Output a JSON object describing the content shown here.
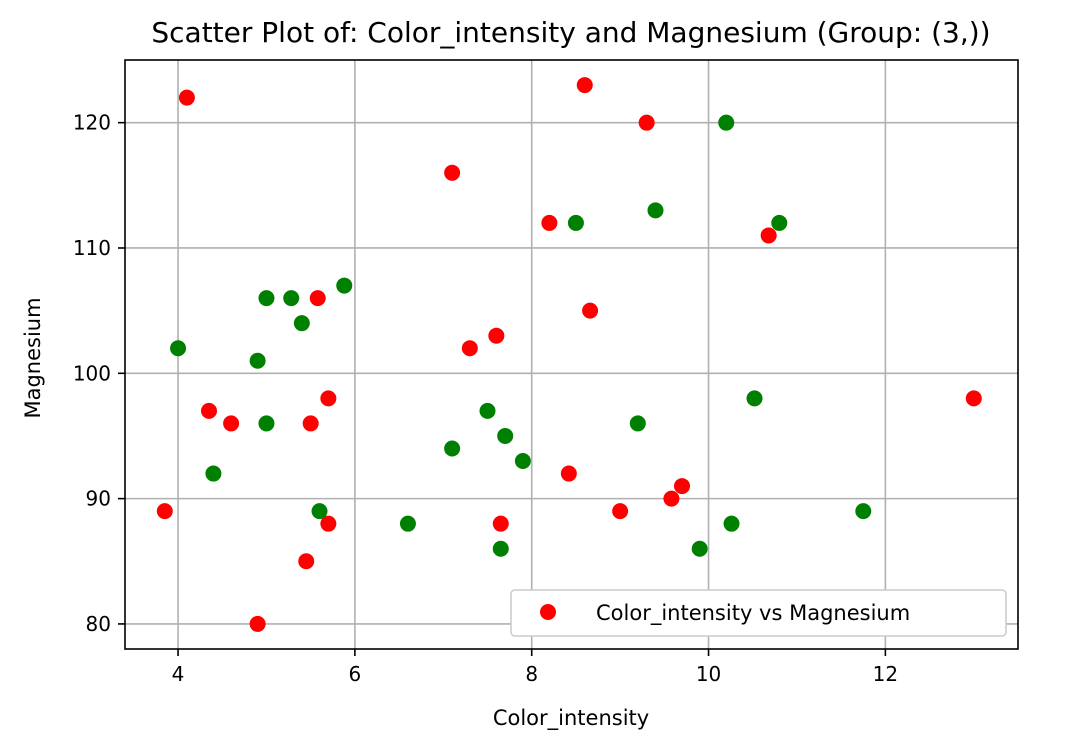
{
  "chart_data": {
    "type": "scatter",
    "title": "Scatter Plot of: Color_intensity and Magnesium (Group: (3,))",
    "xlabel": "Color_intensity",
    "ylabel": "Magnesium",
    "xlim": [
      3.4,
      13.5
    ],
    "ylim": [
      78,
      125
    ],
    "xticks": [
      4,
      6,
      8,
      10,
      12
    ],
    "yticks": [
      80,
      90,
      100,
      110,
      120
    ],
    "grid": true,
    "legend": {
      "location": "lower right",
      "label": "Color_intensity vs Magnesium",
      "color": "#ff0000"
    },
    "series": [
      {
        "color": "#ff0000",
        "points": [
          [
            3.85,
            89
          ],
          [
            4.1,
            122
          ],
          [
            4.35,
            97
          ],
          [
            4.6,
            96
          ],
          [
            4.9,
            80
          ],
          [
            5.45,
            85
          ],
          [
            5.5,
            96
          ],
          [
            5.58,
            106
          ],
          [
            5.7,
            98
          ],
          [
            5.7,
            88
          ],
          [
            7.1,
            116
          ],
          [
            7.3,
            102
          ],
          [
            7.6,
            103
          ],
          [
            7.65,
            88
          ],
          [
            8.2,
            112
          ],
          [
            8.42,
            92
          ],
          [
            8.6,
            123
          ],
          [
            8.66,
            105
          ],
          [
            9.0,
            89
          ],
          [
            9.3,
            120
          ],
          [
            9.58,
            90
          ],
          [
            9.7,
            91
          ],
          [
            10.68,
            111
          ],
          [
            13.0,
            98
          ]
        ]
      },
      {
        "color": "#008000",
        "points": [
          [
            4.0,
            102
          ],
          [
            4.4,
            92
          ],
          [
            4.9,
            101
          ],
          [
            5.0,
            106
          ],
          [
            5.0,
            96
          ],
          [
            5.28,
            106
          ],
          [
            5.4,
            104
          ],
          [
            5.6,
            89
          ],
          [
            5.88,
            107
          ],
          [
            6.6,
            88
          ],
          [
            7.1,
            94
          ],
          [
            7.5,
            97
          ],
          [
            7.65,
            86
          ],
          [
            7.7,
            95
          ],
          [
            7.9,
            93
          ],
          [
            8.5,
            112
          ],
          [
            9.2,
            96
          ],
          [
            9.4,
            113
          ],
          [
            9.9,
            86
          ],
          [
            10.2,
            120
          ],
          [
            10.26,
            88
          ],
          [
            10.52,
            98
          ],
          [
            10.8,
            112
          ],
          [
            11.75,
            89
          ]
        ]
      }
    ]
  }
}
